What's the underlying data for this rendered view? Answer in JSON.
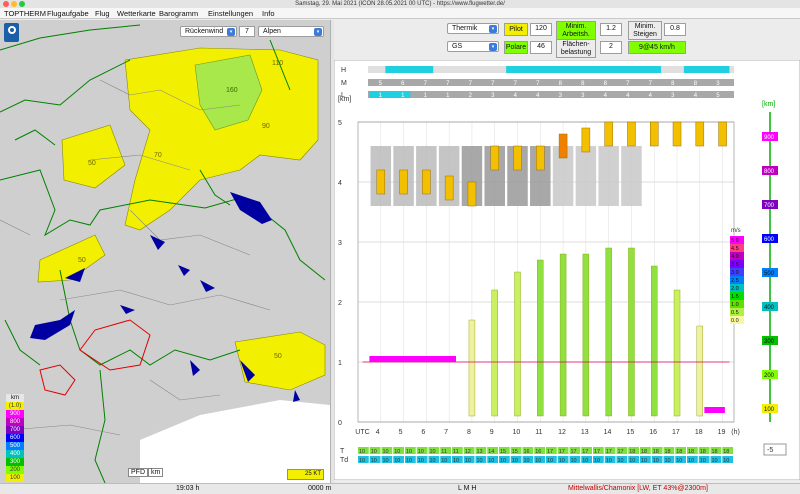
{
  "window": {
    "title": "Samstag, 29. Mai 2021 (ICON 28.05.2021 00 UTC) - https://www.flugwetter.de/"
  },
  "menu": [
    "TOPTHERM",
    "Flugaufgabe",
    "Flug",
    "Wetterkarte",
    "Barogramm",
    "Einstellungen",
    "Info"
  ],
  "map": {
    "layer_select": "Rückenwind",
    "layer_value": "7",
    "region_select": "Alpen",
    "contour_labels": [
      "110",
      "160",
      "90",
      "50",
      "70",
      "50",
      "50"
    ],
    "altitude_legend_title": "km",
    "altitude_legend": [
      {
        "label": "(1.0)",
        "color": "#f2ef00"
      },
      {
        "label": "900",
        "color": "#ff00ff"
      },
      {
        "label": "800",
        "color": "#c000c0"
      },
      {
        "label": "700",
        "color": "#8000c0"
      },
      {
        "label": "600",
        "color": "#0000ff"
      },
      {
        "label": "500",
        "color": "#0080ff"
      },
      {
        "label": "400",
        "color": "#00c0c0"
      },
      {
        "label": "300",
        "color": "#00c000"
      },
      {
        "label": "200",
        "color": "#80ff00"
      },
      {
        "label": "100",
        "color": "#f2ef00"
      }
    ],
    "pfd_label": "PFD",
    "pfd_unit": "km",
    "wind_legend": "25 KT",
    "colors": {
      "water": "#0000a0",
      "yellow": "#f2ef00",
      "green": "#a8e84a",
      "border_green": "#008000",
      "border_red": "#e00000"
    }
  },
  "controls": {
    "mode_select": "Thermik",
    "pilot_label": "Pilot",
    "pilot_value": "120",
    "min_arbeit_label": "Minim. Arbeitsh.",
    "min_arbeit_value": "1.2",
    "min_steigen_label": "Minim. Steigen",
    "min_steigen_value": "0.8",
    "glider_select": "GS",
    "polare_label": "Polare",
    "polare_value": "46",
    "flaechen_label": "Flächen-belastung",
    "flaechen_value": "2",
    "speed_label": "9@45 km/h"
  },
  "chart_data": {
    "type": "heatmap",
    "title": "",
    "cloud_rows": [
      "H",
      "M",
      "L"
    ],
    "cloud_row_m_values": [
      "5",
      "6",
      "7",
      "7",
      "7",
      "7",
      "7",
      "7",
      "8",
      "8",
      "8",
      "7",
      "7",
      "8",
      "8",
      "3"
    ],
    "cloud_row_l_values": [
      "1",
      "1",
      "1",
      "1",
      "2",
      "3",
      "4",
      "4",
      "3",
      "3",
      "4",
      "4",
      "4",
      "3",
      "4",
      "5"
    ],
    "x_ticks": [
      "UTC",
      "4",
      "5",
      "6",
      "7",
      "8",
      "9",
      "10",
      "11",
      "12",
      "13",
      "14",
      "15",
      "16",
      "17",
      "18",
      "19",
      "(h)"
    ],
    "y_ticks": [
      "[km]",
      "5",
      "4",
      "3",
      "2",
      "1",
      "0"
    ],
    "ylim": [
      0,
      5
    ],
    "xlim": [
      3,
      19.5
    ],
    "right_axis_label": "[km]",
    "right_axis": [
      "900",
      "800",
      "700",
      "600",
      "500",
      "400",
      "300",
      "200",
      "100"
    ],
    "climb_legend_title": "m/s",
    "climb_legend": [
      {
        "label": "5.0",
        "color": "#ff00ff"
      },
      {
        "label": "4.5",
        "color": "#ff4080"
      },
      {
        "label": "4.0",
        "color": "#c000c0"
      },
      {
        "label": "3.5",
        "color": "#8000ff"
      },
      {
        "label": "3.0",
        "color": "#4040ff"
      },
      {
        "label": "2.5",
        "color": "#0080ff"
      },
      {
        "label": "2.0",
        "color": "#00c0c0"
      },
      {
        "label": "1.5",
        "color": "#00e000"
      },
      {
        "label": "1.0",
        "color": "#60e000"
      },
      {
        "label": "0.5",
        "color": "#b0f040"
      },
      {
        "label": "0.0",
        "color": "#f8f8a0"
      }
    ],
    "thermal_tops_km": [
      0,
      0,
      0,
      0,
      1.7,
      2.2,
      2.5,
      2.7,
      2.8,
      2.8,
      2.9,
      2.9,
      2.6,
      2.2,
      1.6,
      0
    ],
    "cumulus_tops_km": [
      4.2,
      4.2,
      4.2,
      4.1,
      4.0,
      4.6,
      4.6,
      4.6,
      4.8,
      4.9,
      5.0,
      5.0,
      5.0,
      5.0,
      5.0,
      5.0
    ],
    "temp_row_label": "T",
    "dew_row_label": "Td",
    "temp_values": [
      "10",
      "10",
      "10",
      "10",
      "10",
      "10",
      "10",
      "11",
      "11",
      "12",
      "13",
      "14",
      "15",
      "15",
      "16",
      "16",
      "17",
      "17",
      "17",
      "17",
      "17",
      "17",
      "17",
      "18",
      "18",
      "18",
      "18",
      "18",
      "18",
      "18",
      "18",
      "18"
    ],
    "dew_values": [
      "10",
      "10",
      "10",
      "10",
      "10",
      "10",
      "10",
      "10",
      "10",
      "10",
      "10",
      "10",
      "10",
      "10",
      "10",
      "10",
      "10",
      "10",
      "10",
      "10",
      "10",
      "10",
      "10",
      "10",
      "10",
      "10",
      "10",
      "10",
      "10",
      "10",
      "10",
      "10"
    ],
    "time_offset": "-5"
  },
  "status": {
    "time": "19:03 h",
    "altitude": "0000 m",
    "layers": "L M H",
    "location": "Mittelwallis/Chamonix [LW, ET  43%@2300m]"
  }
}
